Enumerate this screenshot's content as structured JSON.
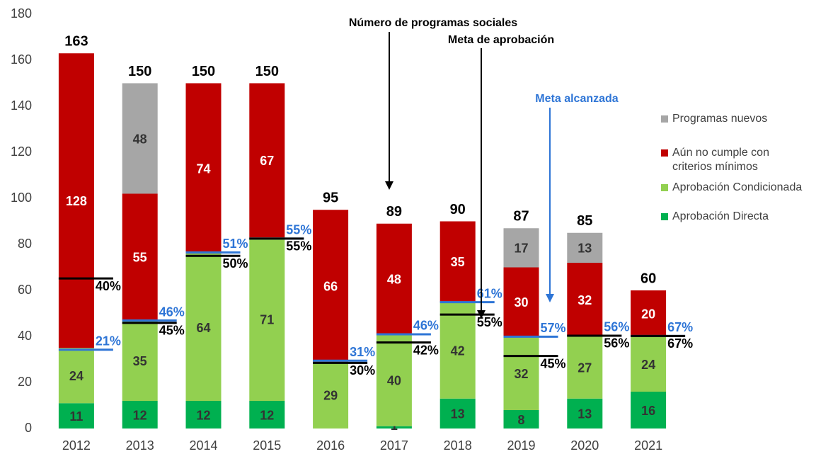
{
  "chart_data": {
    "type": "bar",
    "stacked": true,
    "categories": [
      "2012",
      "2013",
      "2014",
      "2015",
      "2016",
      "2017",
      "2018",
      "2019",
      "2020",
      "2021"
    ],
    "series": [
      {
        "name": "Aprobación Directa",
        "color": "#00b050",
        "values": [
          11,
          12,
          12,
          12,
          null,
          1,
          13,
          8,
          13,
          16
        ]
      },
      {
        "name": "Aprobación Condicionada",
        "color": "#92d050",
        "values": [
          24,
          35,
          64,
          71,
          29,
          40,
          42,
          32,
          27,
          24
        ]
      },
      {
        "name": "Aún no cumple con criterios mínimos",
        "color": "#c00000",
        "values": [
          128,
          55,
          74,
          67,
          66,
          48,
          35,
          30,
          32,
          20
        ]
      },
      {
        "name": "Programas nuevos",
        "color": "#a6a6a6",
        "values": [
          null,
          48,
          null,
          null,
          null,
          null,
          null,
          17,
          13,
          null
        ]
      }
    ],
    "totals": {
      "name": "Número de programas sociales",
      "color": "#000000",
      "values": [
        163,
        150,
        150,
        150,
        95,
        89,
        90,
        87,
        85,
        60
      ]
    },
    "meta_aprobacion": {
      "name": "Meta de aprobación",
      "color": "#000000",
      "values": [
        40,
        45,
        50,
        55,
        30,
        42,
        55,
        45,
        56,
        67
      ],
      "value_labels": [
        "40%",
        "45%",
        "50%",
        "55%",
        "30%",
        "42%",
        "55%",
        "45%",
        "56%",
        "67%"
      ]
    },
    "meta_alcanzada": {
      "name": "Meta alcanzada",
      "color": "#2e75d6",
      "values": [
        21,
        46,
        51,
        55,
        31,
        46,
        61,
        57,
        56,
        67
      ],
      "value_labels": [
        "21%",
        "46%",
        "51%",
        "55%",
        "31%",
        "46%",
        "61%",
        "57%",
        "56%",
        "67%"
      ]
    },
    "ylim": [
      0,
      180
    ],
    "yticks": [
      0,
      20,
      40,
      60,
      80,
      100,
      120,
      140,
      160,
      180
    ],
    "grid": false,
    "legend": "right"
  }
}
